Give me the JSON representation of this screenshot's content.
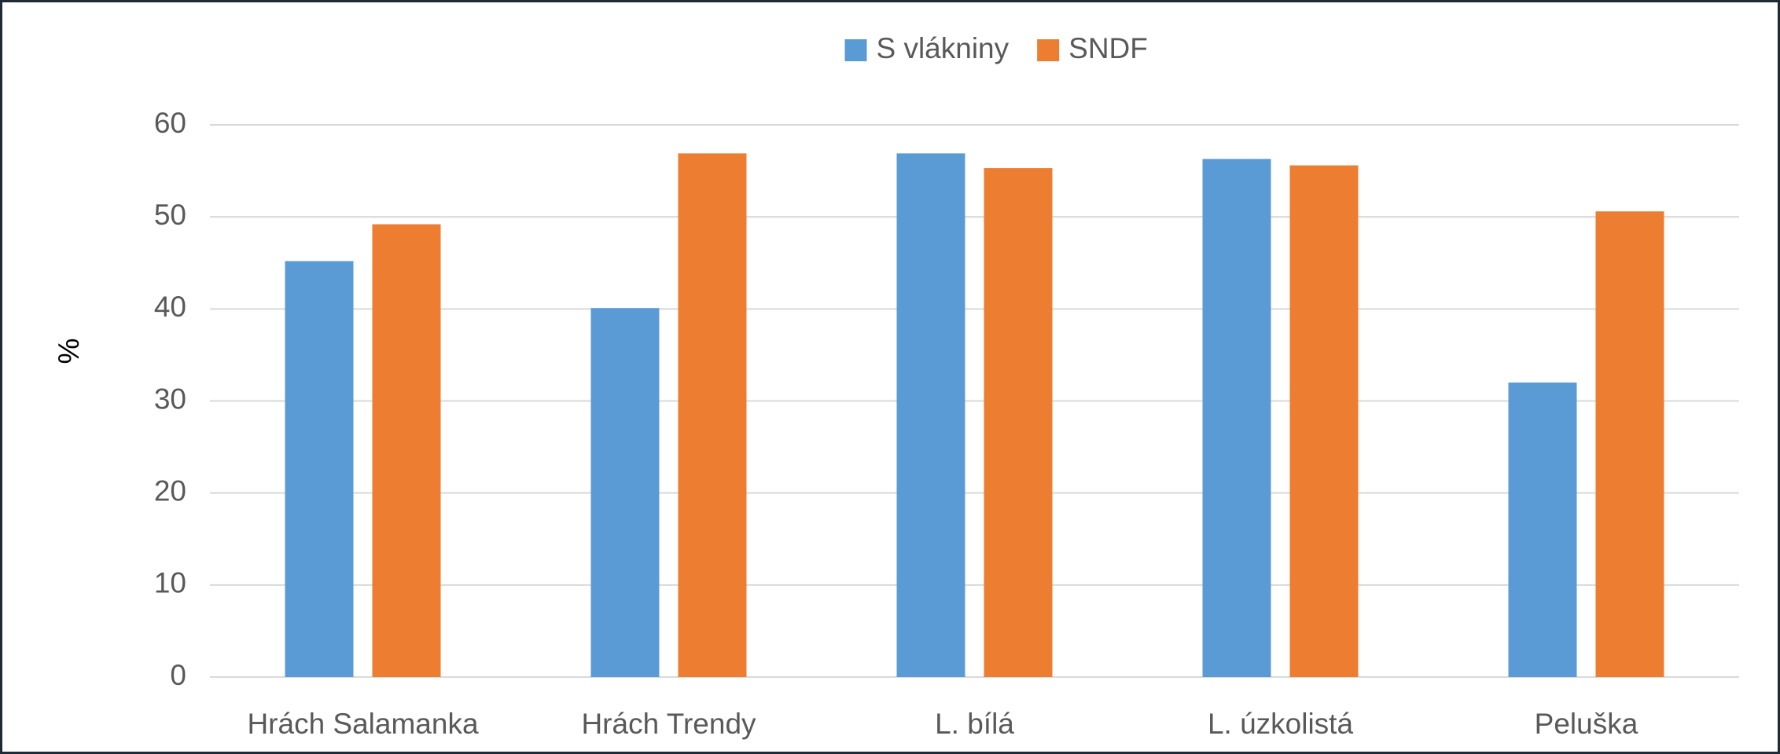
{
  "chart_data": {
    "type": "bar",
    "categories": [
      "Hrách Salamanka",
      "Hrách Trendy",
      "L. bílá",
      "L. úzkolistá",
      "Peluška"
    ],
    "series": [
      {
        "name": "S vlákniny",
        "color": "#5b9bd5",
        "values": [
          45.2,
          40.1,
          56.9,
          56.3,
          32
        ]
      },
      {
        "name": "SNDF",
        "color": "#ed7d31",
        "values": [
          49.2,
          56.9,
          55.3,
          55.6,
          50.6
        ]
      }
    ],
    "y_label": "%",
    "ylim": [
      0,
      60
    ],
    "yticks": [
      0,
      10,
      20,
      30,
      40,
      50,
      60
    ],
    "grid": true,
    "legend": "top"
  }
}
